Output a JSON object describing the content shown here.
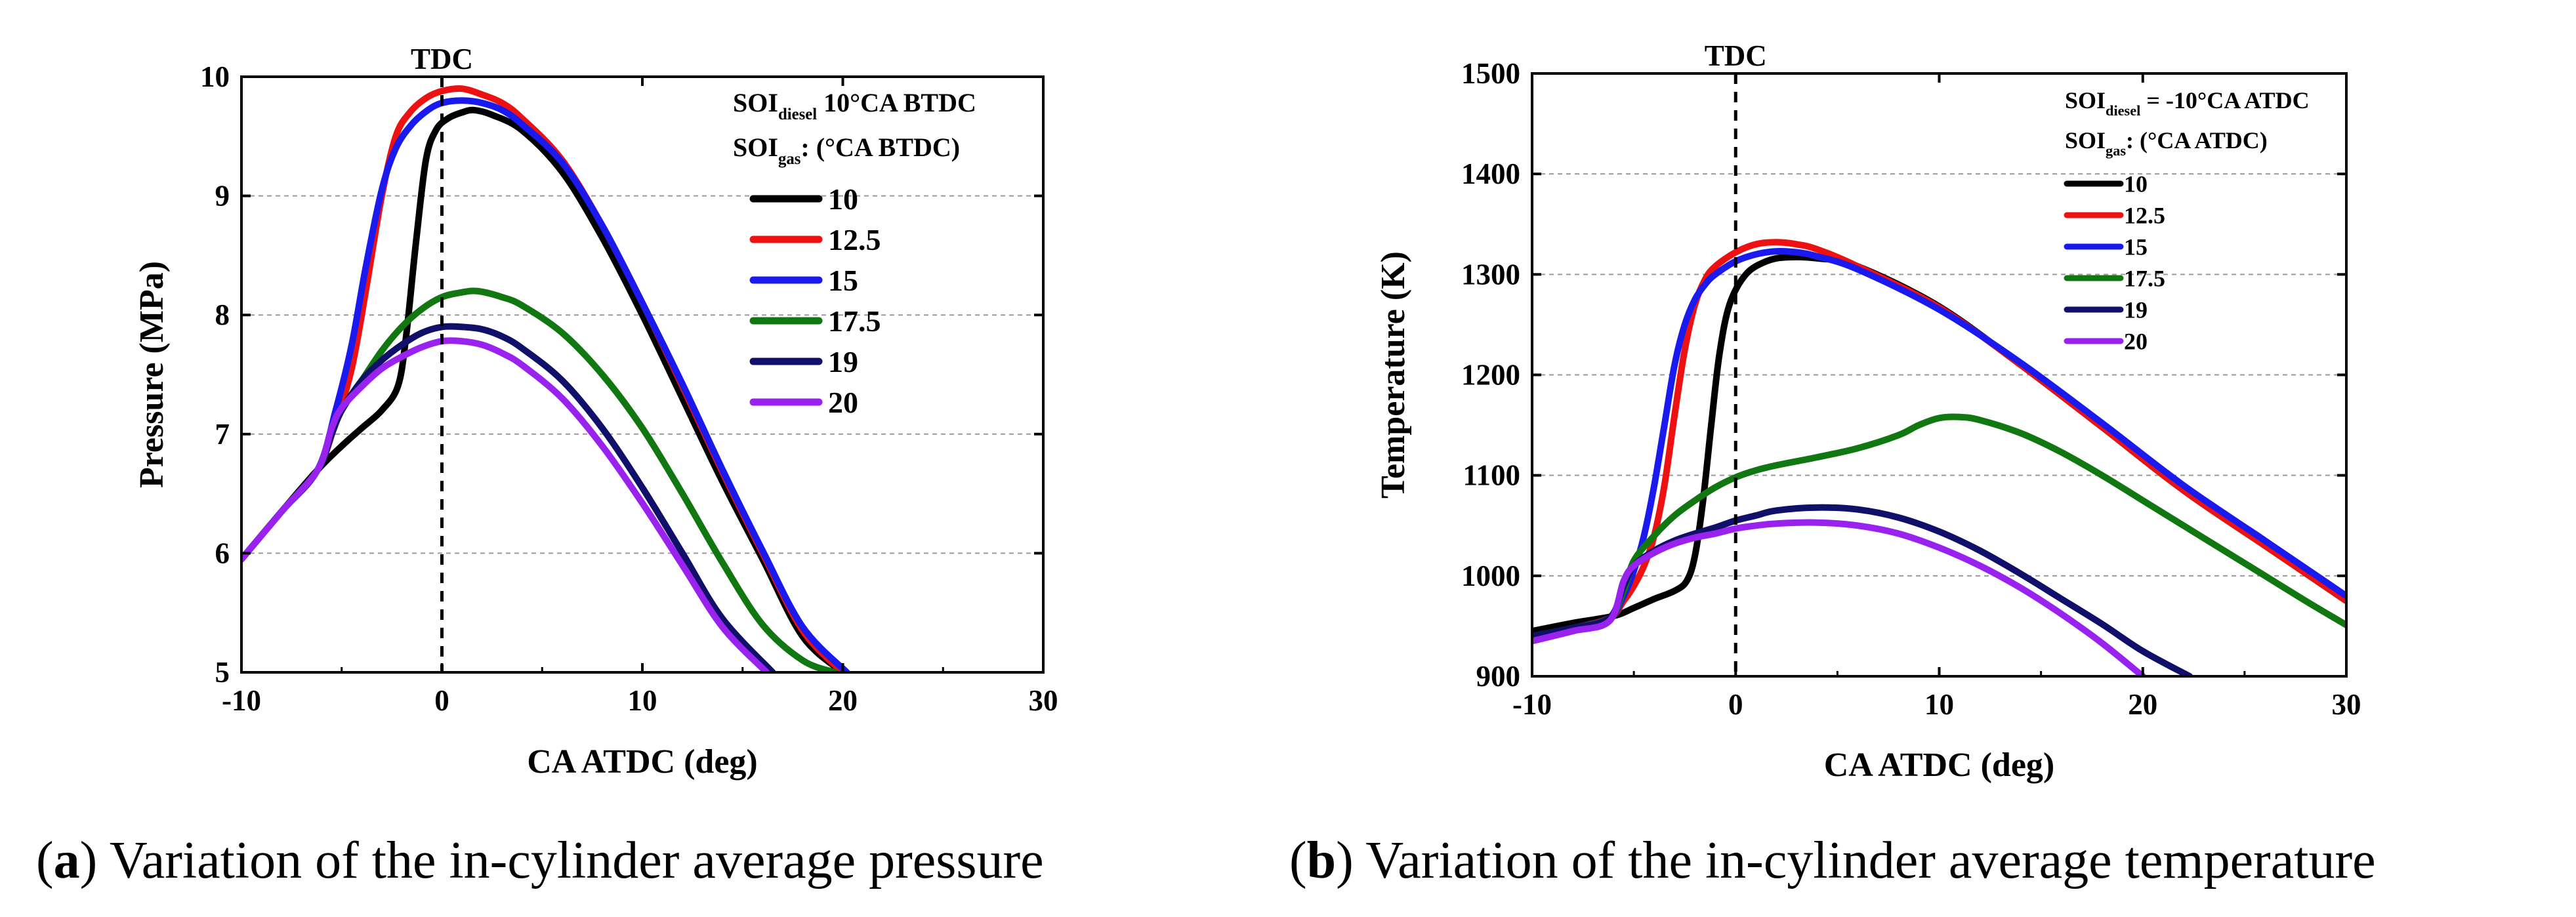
{
  "captions": {
    "a": {
      "letter": "a",
      "text": ") Variation of the in-cylinder average pressure"
    },
    "b": {
      "letter": "b",
      "text": ") Variation of the in-cylinder average temperature"
    }
  },
  "chart_data": [
    {
      "id": "a",
      "type": "line",
      "title": "",
      "xlabel": "CA ATDC (deg)",
      "ylabel": "Pressure (MPa)",
      "xlim": [
        -10,
        30
      ],
      "ylim": [
        5,
        10
      ],
      "xticks": [
        -10,
        0,
        10,
        20,
        30
      ],
      "xtick_labels": [
        "-10",
        "0",
        "10",
        "20",
        "30"
      ],
      "yticks": [
        5,
        6,
        7,
        8,
        9,
        10
      ],
      "ytick_labels": [
        "5",
        "6",
        "7",
        "8",
        "9",
        "10"
      ],
      "grid": "horizontal dashed",
      "annotation": {
        "text": "TDC",
        "x": 0
      },
      "legend": {
        "position": "top-right",
        "header": [
          {
            "main": "SOI",
            "sub": "diesel",
            "rest": " 10°CA BTDC"
          },
          {
            "main": "SOI",
            "sub": "gas",
            "rest": ": (°CA BTDC)"
          }
        ]
      },
      "series": [
        {
          "name": "10",
          "color": "#000000",
          "x": [
            -10,
            -8,
            -6.2,
            -5,
            -4,
            -3,
            -2.2,
            -1.8,
            -1.3,
            -0.8,
            -0.3,
            0.3,
            1,
            1.6,
            2.5,
            4,
            6,
            8,
            10,
            12,
            14,
            16,
            18,
            20
          ],
          "y": [
            5.95,
            6.35,
            6.7,
            6.9,
            7.05,
            7.2,
            7.4,
            7.8,
            8.6,
            9.3,
            9.55,
            9.65,
            9.7,
            9.72,
            9.68,
            9.55,
            9.2,
            8.65,
            8.0,
            7.3,
            6.6,
            5.95,
            5.3,
            5.0
          ]
        },
        {
          "name": "12.5",
          "color": "#ee1111",
          "x": [
            -10,
            -8,
            -6.2,
            -5.3,
            -4.5,
            -3.8,
            -3,
            -2.3,
            -1.6,
            -0.8,
            0,
            1,
            2,
            3,
            4,
            6,
            8,
            10,
            12,
            14,
            16,
            18,
            20
          ],
          "y": [
            5.95,
            6.35,
            6.7,
            7.1,
            7.55,
            8.2,
            9.0,
            9.5,
            9.7,
            9.82,
            9.88,
            9.9,
            9.85,
            9.78,
            9.65,
            9.3,
            8.75,
            8.1,
            7.4,
            6.68,
            6.0,
            5.35,
            5.0
          ]
        },
        {
          "name": "15",
          "color": "#1a1aee",
          "x": [
            -10,
            -8,
            -6.2,
            -5.3,
            -4.5,
            -3.8,
            -3,
            -2.3,
            -1.5,
            -0.7,
            0,
            1,
            2,
            3,
            4,
            6,
            8,
            10,
            12,
            14,
            16,
            18,
            20.2
          ],
          "y": [
            5.95,
            6.35,
            6.7,
            7.2,
            7.75,
            8.4,
            9.05,
            9.4,
            9.6,
            9.72,
            9.78,
            9.8,
            9.78,
            9.72,
            9.6,
            9.28,
            8.75,
            8.1,
            7.42,
            6.7,
            6.02,
            5.38,
            5.0
          ]
        },
        {
          "name": "17.5",
          "color": "#117711",
          "x": [
            -10,
            -8,
            -6.2,
            -5.5,
            -5,
            -4,
            -3,
            -2,
            -1,
            0,
            1,
            1.8,
            3,
            4,
            6,
            8,
            10,
            12,
            14,
            16,
            18,
            19.6
          ],
          "y": [
            5.95,
            6.35,
            6.7,
            7.0,
            7.2,
            7.45,
            7.7,
            7.9,
            8.05,
            8.15,
            8.19,
            8.2,
            8.15,
            8.08,
            7.85,
            7.5,
            7.05,
            6.5,
            5.92,
            5.4,
            5.1,
            5.0
          ]
        },
        {
          "name": "19",
          "color": "#10106a",
          "x": [
            -10,
            -8,
            -6.2,
            -5.5,
            -5,
            -4,
            -3,
            -2,
            -1,
            0,
            1,
            2,
            3,
            4,
            6,
            8,
            10,
            12,
            14,
            16.5
          ],
          "y": [
            5.95,
            6.35,
            6.7,
            7.0,
            7.2,
            7.45,
            7.62,
            7.75,
            7.85,
            7.9,
            7.9,
            7.88,
            7.82,
            7.72,
            7.45,
            7.05,
            6.55,
            6.0,
            5.45,
            5.0
          ]
        },
        {
          "name": "20",
          "color": "#9922ee",
          "x": [
            -10,
            -8,
            -6.2,
            -5.5,
            -5,
            -4,
            -3,
            -2,
            -1,
            0,
            1,
            2,
            3,
            4,
            6,
            8,
            10,
            12,
            14,
            16.2
          ],
          "y": [
            5.95,
            6.35,
            6.7,
            7.05,
            7.22,
            7.4,
            7.55,
            7.65,
            7.73,
            7.78,
            7.78,
            7.75,
            7.68,
            7.58,
            7.3,
            6.9,
            6.42,
            5.9,
            5.38,
            5.0
          ]
        }
      ]
    },
    {
      "id": "b",
      "type": "line",
      "title": "",
      "xlabel": "CA ATDC (deg)",
      "ylabel": "Temperature (K)",
      "xlim": [
        -10,
        30
      ],
      "ylim": [
        900,
        1500
      ],
      "xticks": [
        -10,
        0,
        10,
        20,
        30
      ],
      "xtick_labels": [
        "-10",
        "0",
        "10",
        "20",
        "30"
      ],
      "yticks": [
        900,
        1000,
        1100,
        1200,
        1300,
        1400,
        1500
      ],
      "ytick_labels": [
        "900",
        "1000",
        "1100",
        "1200",
        "1300",
        "1400",
        "1500"
      ],
      "grid": "horizontal dashed",
      "annotation": {
        "text": "TDC",
        "x": 0
      },
      "legend": {
        "position": "top-right",
        "header": [
          {
            "main": "SOI",
            "sub": "diesel",
            "rest": " = -10°CA ATDC"
          },
          {
            "main": "SOI",
            "sub": "gas",
            "rest": ": (°CA ATDC)"
          }
        ]
      },
      "series": [
        {
          "name": "10",
          "color": "#000000",
          "x": [
            -10,
            -8,
            -6,
            -5,
            -4,
            -3,
            -2.4,
            -2,
            -1.6,
            -1.2,
            -0.8,
            -0.3,
            0.5,
            1.5,
            2.5,
            4,
            6,
            10,
            14,
            18,
            22,
            26,
            30
          ],
          "y": [
            945,
            953,
            960,
            968,
            977,
            985,
            995,
            1020,
            1075,
            1150,
            1220,
            1270,
            1300,
            1313,
            1317,
            1316,
            1308,
            1268,
            1210,
            1148,
            1085,
            1030,
            975
          ]
        },
        {
          "name": "12.5",
          "color": "#ee1111",
          "x": [
            -10,
            -8,
            -6.2,
            -5.5,
            -5,
            -4.5,
            -4,
            -3.5,
            -3,
            -2.5,
            -2,
            -1.5,
            -1,
            0,
            1,
            2,
            3,
            4,
            6,
            10,
            14,
            18,
            22,
            26,
            30
          ],
          "y": [
            940,
            948,
            958,
            975,
            990,
            1010,
            1040,
            1090,
            1160,
            1225,
            1270,
            1295,
            1308,
            1322,
            1330,
            1332,
            1330,
            1325,
            1308,
            1267,
            1210,
            1148,
            1085,
            1030,
            975
          ]
        },
        {
          "name": "15",
          "color": "#1a1aee",
          "x": [
            -10,
            -8,
            -6.2,
            -5.5,
            -5,
            -4.5,
            -4,
            -3.5,
            -3,
            -2.5,
            -2,
            -1.5,
            -1,
            0,
            1,
            2,
            3,
            4,
            6,
            10,
            14,
            18,
            22,
            26,
            30
          ],
          "y": [
            940,
            948,
            958,
            980,
            1005,
            1040,
            1090,
            1150,
            1210,
            1250,
            1275,
            1290,
            1300,
            1313,
            1320,
            1323,
            1322,
            1318,
            1305,
            1265,
            1212,
            1152,
            1090,
            1035,
            980
          ]
        },
        {
          "name": "17.5",
          "color": "#117711",
          "x": [
            -10,
            -8,
            -6.2,
            -5.5,
            -5,
            -4,
            -3,
            -2,
            -1,
            0,
            1,
            2,
            4,
            6,
            8,
            9,
            10,
            11,
            12,
            14,
            16,
            18,
            20,
            22,
            24,
            26,
            28,
            30
          ],
          "y": [
            940,
            948,
            958,
            985,
            1015,
            1040,
            1060,
            1075,
            1088,
            1098,
            1105,
            1110,
            1118,
            1127,
            1140,
            1150,
            1157,
            1158,
            1155,
            1142,
            1123,
            1100,
            1075,
            1050,
            1025,
            1000,
            975,
            951
          ]
        },
        {
          "name": "19",
          "color": "#10106a",
          "x": [
            -10,
            -8,
            -6.2,
            -5.5,
            -5,
            -4,
            -3,
            -2,
            -1,
            0,
            1,
            2,
            4,
            6,
            8,
            10,
            12,
            14,
            16,
            18,
            20,
            22.3
          ],
          "y": [
            940,
            948,
            958,
            990,
            1010,
            1025,
            1035,
            1042,
            1048,
            1055,
            1060,
            1065,
            1068,
            1066,
            1058,
            1044,
            1025,
            1002,
            977,
            952,
            925,
            900
          ]
        },
        {
          "name": "20",
          "color": "#9922ee",
          "x": [
            -10,
            -8,
            -6.2,
            -5.5,
            -5,
            -4,
            -3,
            -2,
            -1,
            0,
            1,
            2,
            4,
            6,
            8,
            10,
            12,
            14,
            16,
            18,
            20
          ],
          "y": [
            935,
            945,
            955,
            995,
            1010,
            1023,
            1032,
            1038,
            1042,
            1047,
            1050,
            1052,
            1053,
            1050,
            1042,
            1028,
            1010,
            988,
            962,
            933,
            900
          ]
        }
      ]
    }
  ]
}
